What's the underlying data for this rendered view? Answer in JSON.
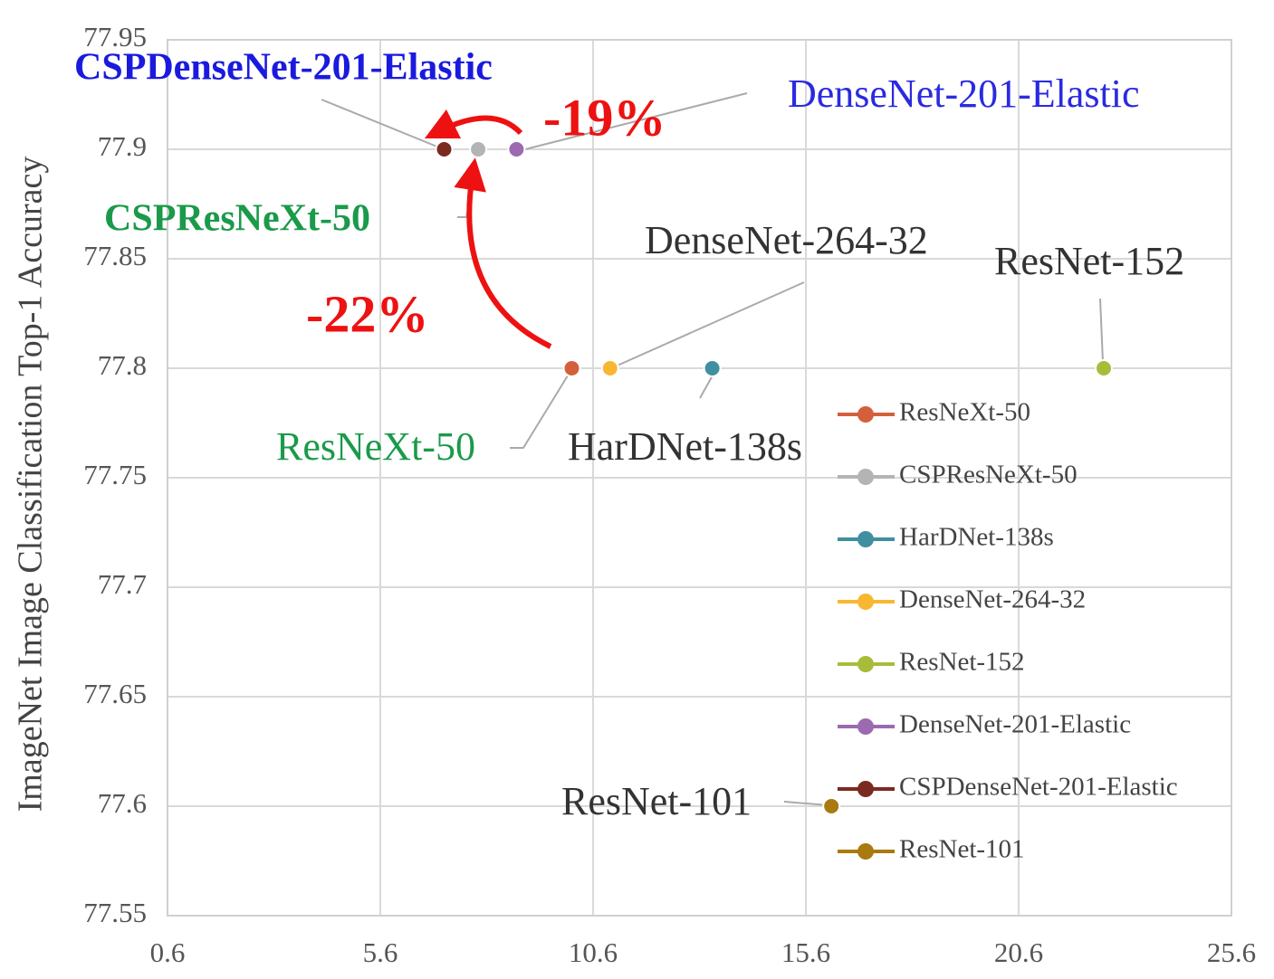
{
  "chart_data": {
    "type": "scatter",
    "y_label": "ImageNet Image Classification Top-1 Accuracy",
    "xlim": [
      0.6,
      25.6
    ],
    "xticks": [
      0.6,
      5.6,
      10.6,
      15.6,
      20.6,
      25.6
    ],
    "ylim": [
      77.55,
      77.95
    ],
    "yticks": [
      77.55,
      77.6,
      77.65,
      77.7,
      77.75,
      77.8,
      77.85,
      77.9,
      77.95
    ],
    "grid": true,
    "legend": "right",
    "series": [
      {
        "name": "ResNeXt-50",
        "color": "#d4603b",
        "x": [
          10.1
        ],
        "values": [
          77.8
        ]
      },
      {
        "name": "CSPResNeXt-50",
        "color": "#b4b4b4",
        "x": [
          7.9
        ],
        "values": [
          77.9
        ]
      },
      {
        "name": "HarDNet-138s",
        "color": "#3f8fa0",
        "x": [
          13.4
        ],
        "values": [
          77.8
        ]
      },
      {
        "name": "DenseNet-264-32",
        "color": "#f8b732",
        "x": [
          11.0
        ],
        "values": [
          77.8
        ]
      },
      {
        "name": "ResNet-152",
        "color": "#a9bc3a",
        "x": [
          22.6
        ],
        "values": [
          77.8
        ]
      },
      {
        "name": "DenseNet-201-Elastic",
        "color": "#9b6ab0",
        "x": [
          8.8
        ],
        "values": [
          77.9
        ]
      },
      {
        "name": "CSPDenseNet-201-Elastic",
        "color": "#7a2a1f",
        "x": [
          7.1
        ],
        "values": [
          77.9
        ]
      },
      {
        "name": "ResNet-101",
        "color": "#a97a10",
        "x": [
          16.2
        ],
        "values": [
          77.6
        ]
      }
    ],
    "annotations": [
      {
        "text": "CSPDenseNet-201-Elastic",
        "color": "#1a1adf"
      },
      {
        "text": "DenseNet-201-Elastic",
        "color": "#2a2ae0"
      },
      {
        "text": "-19%",
        "color": "#ee1111"
      },
      {
        "text": "CSPResNeXt-50",
        "color": "#1a9a4a"
      },
      {
        "text": "DenseNet-264-32",
        "color": "#333333"
      },
      {
        "text": "ResNet-152",
        "color": "#333333"
      },
      {
        "text": "-22%",
        "color": "#ee1111"
      },
      {
        "text": "ResNeXt-50",
        "color": "#1a9a4a"
      },
      {
        "text": "HarDNet-138s",
        "color": "#333333"
      },
      {
        "text": "ResNet-101",
        "color": "#333333"
      }
    ]
  }
}
